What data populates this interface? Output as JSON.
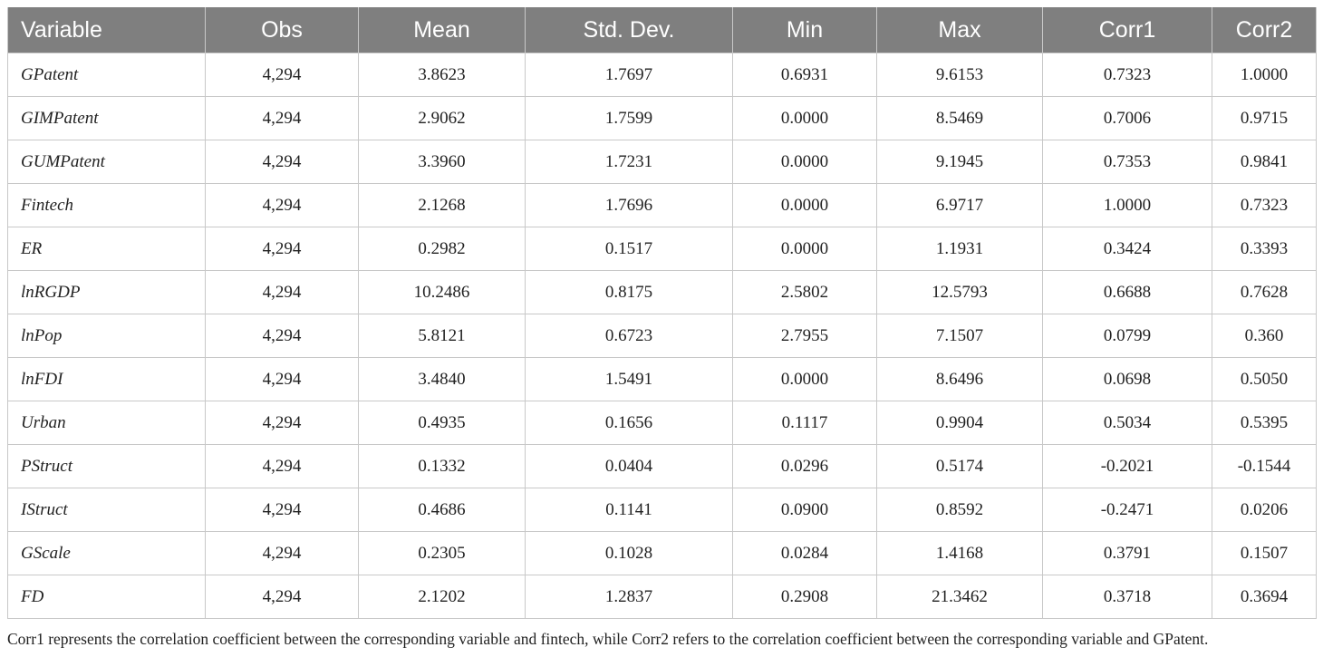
{
  "table": {
    "headers": [
      "Variable",
      "Obs",
      "Mean",
      "Std. Dev.",
      "Min",
      "Max",
      "Corr1",
      "Corr2"
    ],
    "rows": [
      [
        "GPatent",
        "4,294",
        "3.8623",
        "1.7697",
        "0.6931",
        "9.6153",
        "0.7323",
        "1.0000"
      ],
      [
        "GIMPatent",
        "4,294",
        "2.9062",
        "1.7599",
        "0.0000",
        "8.5469",
        "0.7006",
        "0.9715"
      ],
      [
        "GUMPatent",
        "4,294",
        "3.3960",
        "1.7231",
        "0.0000",
        "9.1945",
        "0.7353",
        "0.9841"
      ],
      [
        "Fintech",
        "4,294",
        "2.1268",
        "1.7696",
        "0.0000",
        "6.9717",
        "1.0000",
        "0.7323"
      ],
      [
        "ER",
        "4,294",
        "0.2982",
        "0.1517",
        "0.0000",
        "1.1931",
        "0.3424",
        "0.3393"
      ],
      [
        "lnRGDP",
        "4,294",
        "10.2486",
        "0.8175",
        "2.5802",
        "12.5793",
        "0.6688",
        "0.7628"
      ],
      [
        "lnPop",
        "4,294",
        "5.8121",
        "0.6723",
        "2.7955",
        "7.1507",
        "0.0799",
        "0.360"
      ],
      [
        "lnFDI",
        "4,294",
        "3.4840",
        "1.5491",
        "0.0000",
        "8.6496",
        "0.0698",
        "0.5050"
      ],
      [
        "Urban",
        "4,294",
        "0.4935",
        "0.1656",
        "0.1117",
        "0.9904",
        "0.5034",
        "0.5395"
      ],
      [
        "PStruct",
        "4,294",
        "0.1332",
        "0.0404",
        "0.0296",
        "0.5174",
        "-0.2021",
        "-0.1544"
      ],
      [
        "IStruct",
        "4,294",
        "0.4686",
        "0.1141",
        "0.0900",
        "0.8592",
        "-0.2471",
        "0.0206"
      ],
      [
        "GScale",
        "4,294",
        "0.2305",
        "0.1028",
        "0.0284",
        "1.4168",
        "0.3791",
        "0.1507"
      ],
      [
        "FD",
        "4,294",
        "2.1202",
        "1.2837",
        "0.2908",
        "21.3462",
        "0.3718",
        "0.3694"
      ]
    ]
  },
  "footnote": "Corr1 represents the correlation coefficient between the corresponding variable and fintech, while Corr2 refers to the correlation coefficient between the corresponding variable and GPatent."
}
